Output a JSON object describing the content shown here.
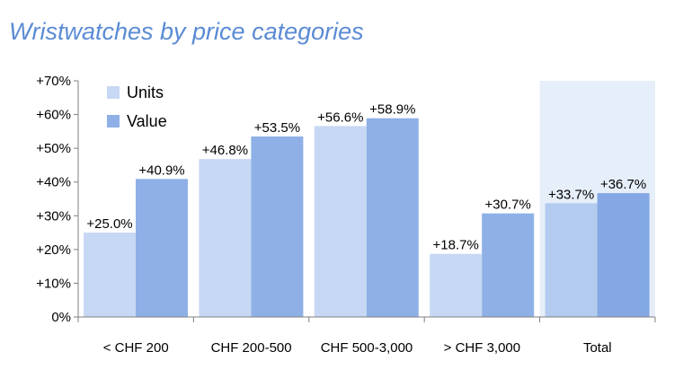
{
  "chart_data": {
    "type": "bar",
    "title": "Wristwatches by price categories",
    "categories": [
      "< CHF 200",
      "CHF 200-500",
      "CHF 500-3,000",
      "> CHF 3,000",
      "Total"
    ],
    "series": [
      {
        "name": "Units",
        "values": [
          25.0,
          46.8,
          56.6,
          18.7,
          33.7
        ],
        "labels": [
          "+25.0%",
          "+46.8%",
          "+56.6%",
          "+18.7%",
          "+33.7%"
        ],
        "color": "#c7d8f4",
        "highlight_color": "#b3cbee"
      },
      {
        "name": "Value",
        "values": [
          40.9,
          53.5,
          58.9,
          30.7,
          36.7
        ],
        "labels": [
          "+40.9%",
          "+53.5%",
          "+58.9%",
          "+30.7%",
          "+36.7%"
        ],
        "color": "#8eb0e6",
        "highlight_color": "#83a8e3"
      }
    ],
    "ylim": [
      0,
      70
    ],
    "yticks": [
      0,
      10,
      20,
      30,
      40,
      50,
      60,
      70
    ],
    "ytick_labels": [
      "0%",
      "+10%",
      "+20%",
      "+30%",
      "+40%",
      "+50%",
      "+60%",
      "+70%"
    ],
    "highlight_category": "Total",
    "highlight_bg": "#e6eef9",
    "legend_position": "top-left",
    "grid": false
  }
}
